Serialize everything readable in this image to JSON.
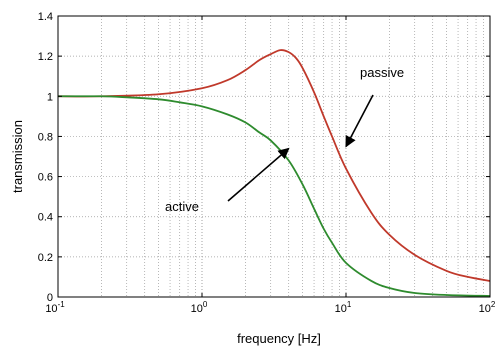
{
  "chart_data": {
    "type": "line",
    "title": "",
    "xlabel": "frequency  [Hz]",
    "ylabel": "transmission",
    "xscale": "log",
    "xlim": [
      0.1,
      100
    ],
    "ylim": [
      0,
      1.4
    ],
    "x_ticks": [
      {
        "base": "10",
        "exp": "-1",
        "value": 0.1
      },
      {
        "base": "10",
        "exp": "0",
        "value": 1
      },
      {
        "base": "10",
        "exp": "1",
        "value": 10
      },
      {
        "base": "10",
        "exp": "2",
        "value": 100
      }
    ],
    "y_ticks": [
      "0",
      "0.2",
      "0.4",
      "0.6",
      "0.8",
      "1",
      "1.2",
      "1.4"
    ],
    "y_tick_values": [
      0,
      0.2,
      0.4,
      0.6,
      0.8,
      1,
      1.2,
      1.4
    ],
    "grid": "dotted",
    "series": [
      {
        "color": "#c0392b",
        "x": [
          0.1,
          0.2,
          0.5,
          1,
          1.5,
          2,
          2.5,
          3,
          3.5,
          4,
          4.5,
          5,
          6,
          7,
          8,
          10,
          15,
          20,
          30,
          50,
          70,
          100
        ],
        "y": [
          1.0,
          1.0,
          1.01,
          1.04,
          1.08,
          1.13,
          1.18,
          1.21,
          1.23,
          1.22,
          1.19,
          1.14,
          1.02,
          0.9,
          0.8,
          0.64,
          0.42,
          0.31,
          0.21,
          0.13,
          0.1,
          0.08
        ]
      },
      {
        "color": "#2e8b2e",
        "x": [
          0.1,
          0.2,
          0.3,
          0.5,
          0.7,
          1,
          1.5,
          2,
          2.5,
          3,
          4,
          5,
          6,
          7,
          8,
          10,
          15,
          20,
          30,
          50,
          100
        ],
        "y": [
          1.0,
          1.0,
          0.995,
          0.985,
          0.97,
          0.95,
          0.91,
          0.87,
          0.82,
          0.78,
          0.68,
          0.56,
          0.44,
          0.34,
          0.27,
          0.17,
          0.08,
          0.045,
          0.02,
          0.01,
          0.005
        ]
      }
    ],
    "annotations": [
      {
        "text": "passive",
        "arrow_to_x": 10,
        "arrow_to_y": 0.75
      },
      {
        "text": "active",
        "arrow_to_x": 4,
        "arrow_to_y": 0.74
      }
    ]
  }
}
